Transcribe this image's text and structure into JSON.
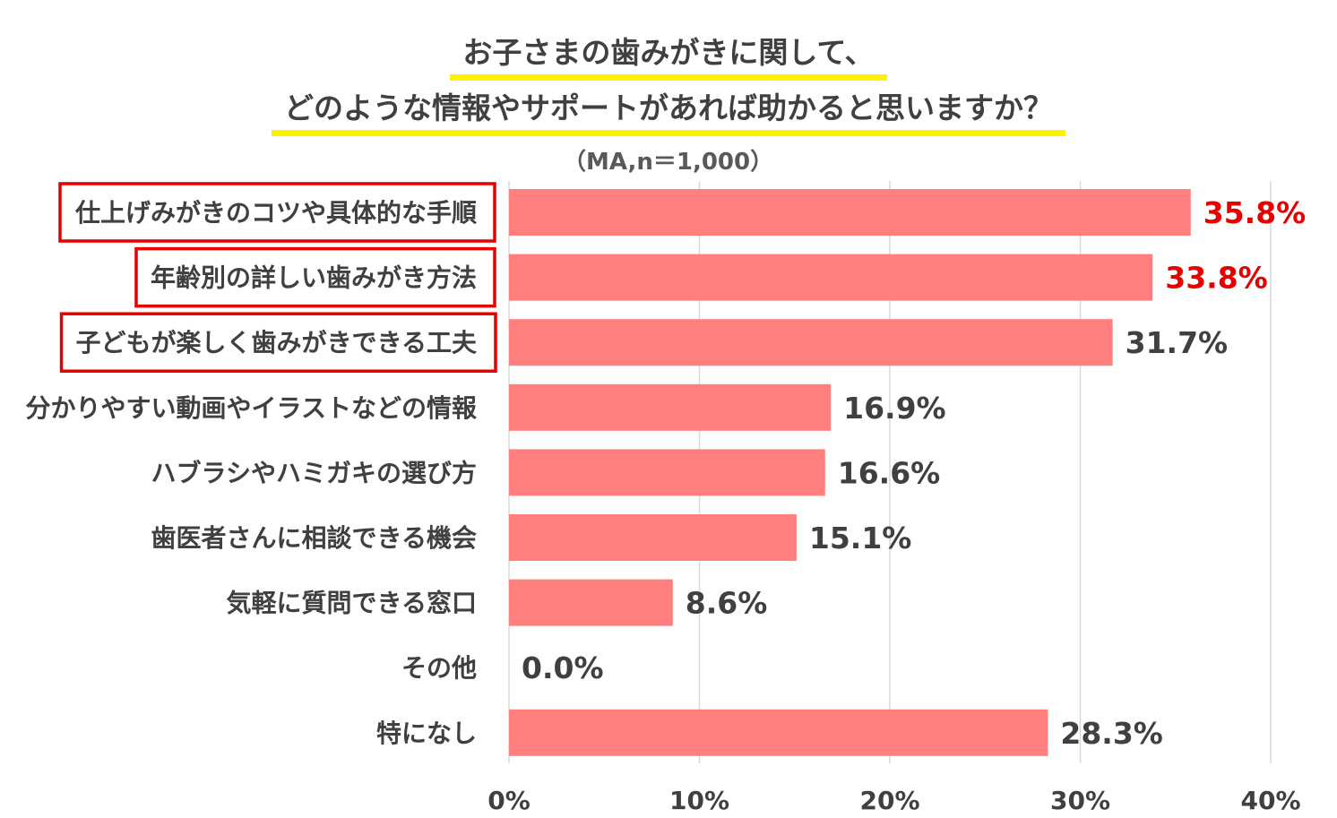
{
  "title": {
    "line1": "お子さまの歯みがきに関して、",
    "line2": "どのような情報やサポートがあれば助かると思いますか？"
  },
  "note": "（MA,n＝1,000）",
  "colors": {
    "bar": "#ff7f7f",
    "highlight_value": "#e60000",
    "highlight_box": "#e60000",
    "title_underline": "#fff200",
    "text": "#404040",
    "grid": "#d9d9d9"
  },
  "chart_data": {
    "type": "bar",
    "orientation": "horizontal",
    "categories": [
      "仕上げみがきのコツや具体的な手順",
      "年齢別の詳しい歯みがき方法",
      "子どもが楽しく歯みがきできる工夫",
      "分かりやすい動画やイラストなどの情報",
      "ハブラシやハミガキの選び方",
      "歯医者さんに相談できる機会",
      "気軽に質問できる窓口",
      "その他",
      "特になし"
    ],
    "values": [
      35.8,
      33.8,
      31.7,
      16.9,
      16.6,
      15.1,
      8.6,
      0.0,
      28.3
    ],
    "value_labels": [
      "35.8%",
      "33.8%",
      "31.7%",
      "16.9%",
      "16.6%",
      "15.1%",
      "8.6%",
      "0.0%",
      "28.3%"
    ],
    "highlighted_value_indices": [
      0,
      1
    ],
    "boxed_category_indices": [
      0,
      1,
      2
    ],
    "xlim": [
      0,
      40
    ],
    "x_ticks": [
      0,
      10,
      20,
      30,
      40
    ],
    "x_tick_labels": [
      "0%",
      "10%",
      "20%",
      "30%",
      "40%"
    ],
    "grid": true
  }
}
